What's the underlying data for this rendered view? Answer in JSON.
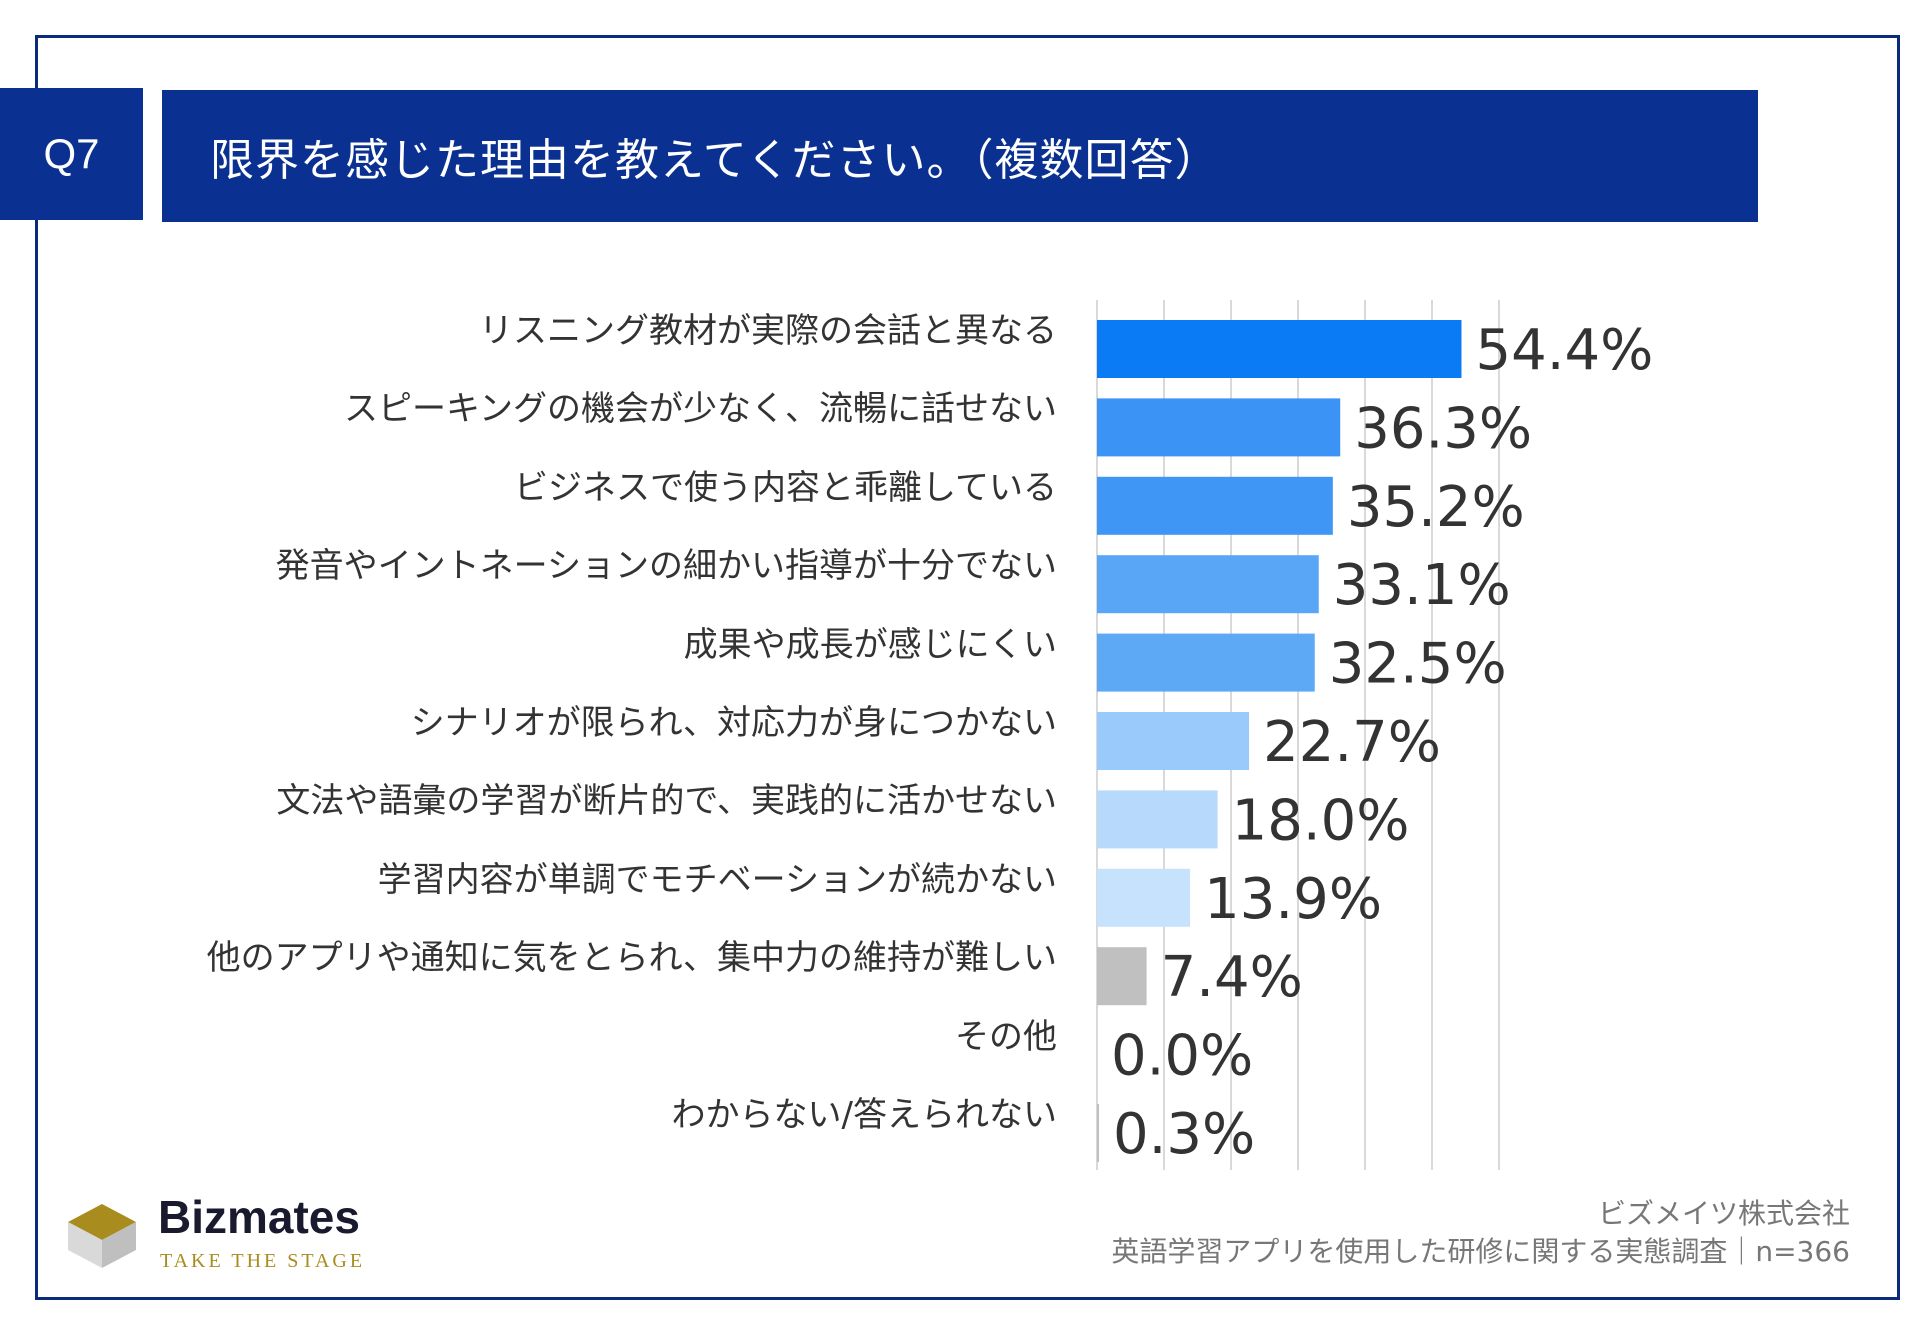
{
  "header": {
    "question_number": "Q7",
    "title": "限界を感じた理由を教えてください。（複数回答）"
  },
  "chart_data": {
    "type": "bar",
    "orientation": "horizontal",
    "categories": [
      "リスニング教材が実際の会話と異なる",
      "スピーキングの機会が少なく、流暢に話せない",
      "ビジネスで使う内容と乖離している",
      "発音やイントネーションの細かい指導が十分でない",
      "成果や成長が感じにくい",
      "シナリオが限られ、対応力が身につかない",
      "文法や語彙の学習が断片的で、実践的に活かせない",
      "学習内容が単調でモチベーションが続かない",
      "他のアプリや通知に気をとられ、集中力の維持が難しい",
      "その他",
      "わからない/答えられない"
    ],
    "values": [
      54.4,
      36.3,
      35.2,
      33.1,
      32.5,
      22.7,
      18.0,
      13.9,
      7.4,
      0.0,
      0.3
    ],
    "value_labels": [
      "54.4%",
      "36.3%",
      "35.2%",
      "33.1%",
      "32.5%",
      "22.7%",
      "18.0%",
      "13.9%",
      "7.4%",
      "0.0%",
      "0.3%"
    ],
    "bar_colors": [
      "#0a7bf5",
      "#3a93f5",
      "#3f96f4",
      "#5aa6f6",
      "#5ea9f6",
      "#9acafb",
      "#b6d9fc",
      "#c7e2fd",
      "#c0c0c0",
      "#c0c0c0",
      "#c0c0c0"
    ],
    "xlim": [
      0,
      60
    ],
    "grid": true,
    "title": "限界を感じた理由を教えてください。（複数回答）"
  },
  "brand": {
    "name": "Bizmates",
    "tagline": "TAKE THE STAGE"
  },
  "source": {
    "company": "ビズメイツ株式会社",
    "survey": "英語学習アプリを使用した研修に関する実態調査｜n=366"
  },
  "colors": {
    "navy": "#0a3191",
    "frame": "#0a2a7a"
  }
}
